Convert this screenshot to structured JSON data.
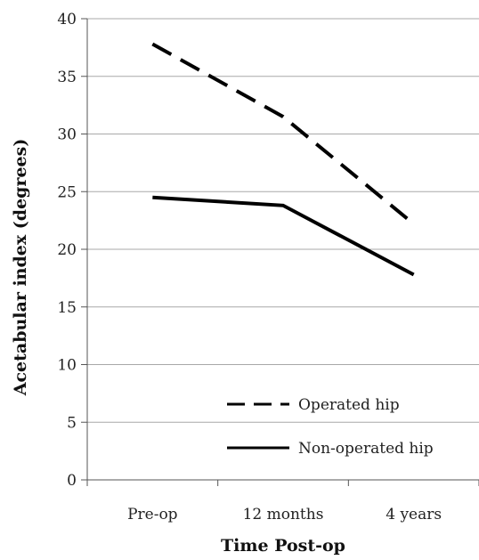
{
  "chart_data": {
    "type": "line",
    "title": "",
    "xlabel": "Time Post-op",
    "ylabel": "Acetabular index (degrees)",
    "categories": [
      "Pre-op",
      "12 months",
      "4 years"
    ],
    "ylim": [
      0,
      40
    ],
    "yticks": [
      0,
      5,
      10,
      15,
      20,
      25,
      30,
      35,
      40
    ],
    "grid": true,
    "legend_position": "bottom-right",
    "series": [
      {
        "name": "Operated hip",
        "values": [
          37.8,
          31.5,
          22.2
        ],
        "style": "dashed",
        "color": "#000000"
      },
      {
        "name": "Non-operated hip",
        "values": [
          24.5,
          23.8,
          17.8
        ],
        "style": "solid",
        "color": "#000000"
      }
    ]
  }
}
